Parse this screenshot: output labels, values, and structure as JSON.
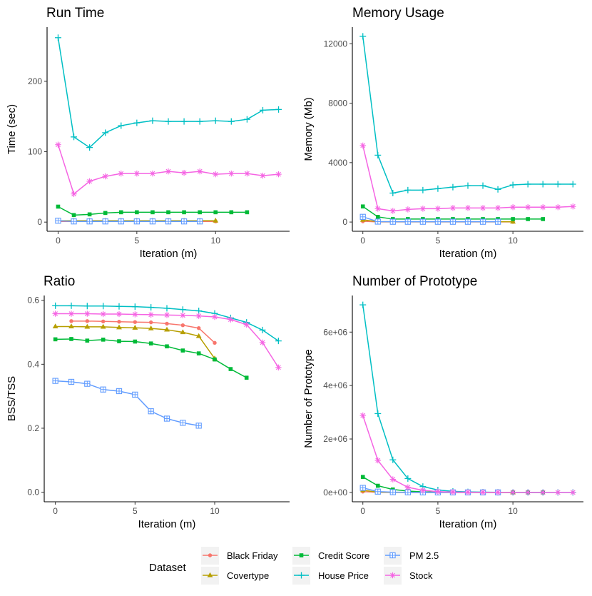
{
  "legend": {
    "title": "Dataset",
    "entries": [
      "Black Friday",
      "Covertype",
      "Credit Score",
      "House Price",
      "PM 2.5",
      "Stock"
    ]
  },
  "series_styles": {
    "Black Friday": {
      "color": "#F8766D",
      "marker": "circle"
    },
    "Covertype": {
      "color": "#B79F00",
      "marker": "triangle"
    },
    "Credit Score": {
      "color": "#00BA38",
      "marker": "square"
    },
    "House Price": {
      "color": "#00BFC4",
      "marker": "plus"
    },
    "PM 2.5": {
      "color": "#619CFF",
      "marker": "boxcross"
    },
    "Stock": {
      "color": "#F564E3",
      "marker": "asterisk"
    }
  },
  "chart_data": [
    {
      "type": "line",
      "title": "Run Time",
      "xlabel": "Iteration (m)",
      "ylabel": "Time (sec)",
      "xlim": [
        -0.7,
        14.7
      ],
      "ylim": [
        -13,
        277
      ],
      "xticks": [
        0,
        5,
        10
      ],
      "xtick_labels": [
        "0",
        "5",
        "10"
      ],
      "yticks": [
        0,
        100,
        200
      ],
      "ytick_labels": [
        "0",
        "100",
        "200"
      ],
      "series": [
        {
          "name": "Black Friday",
          "x": [
            0,
            1,
            2,
            3,
            4,
            5,
            6,
            7,
            8,
            9,
            10
          ],
          "y": [
            1,
            1,
            1,
            1,
            1,
            1,
            1,
            1,
            1,
            1,
            1
          ]
        },
        {
          "name": "Covertype",
          "x": [
            0,
            1,
            2,
            3,
            4,
            5,
            6,
            7,
            8,
            9,
            10
          ],
          "y": [
            2,
            2,
            2,
            2,
            2,
            2,
            2,
            2,
            2,
            2,
            2
          ]
        },
        {
          "name": "Credit Score",
          "x": [
            0,
            1,
            2,
            3,
            4,
            5,
            6,
            7,
            8,
            9,
            10,
            11,
            12
          ],
          "y": [
            22,
            10,
            11,
            13,
            14,
            14,
            14,
            14,
            14,
            14,
            14,
            14,
            14
          ]
        },
        {
          "name": "House Price",
          "x": [
            0,
            1,
            2,
            3,
            4,
            5,
            6,
            7,
            8,
            9,
            10,
            11,
            12,
            13,
            14
          ],
          "y": [
            262,
            121,
            106,
            127,
            137,
            141,
            144,
            143,
            143,
            143,
            144,
            143,
            146,
            159,
            160
          ]
        },
        {
          "name": "PM 2.5",
          "x": [
            0,
            1,
            2,
            3,
            4,
            5,
            6,
            7,
            8,
            9
          ],
          "y": [
            2,
            1,
            1,
            1,
            1,
            1,
            1,
            1,
            1,
            1
          ]
        },
        {
          "name": "Stock",
          "x": [
            0,
            1,
            2,
            3,
            4,
            5,
            6,
            7,
            8,
            9,
            10,
            11,
            12,
            13,
            14
          ],
          "y": [
            110,
            40,
            58,
            65,
            69,
            69,
            69,
            72,
            70,
            72,
            68,
            69,
            69,
            66,
            68
          ]
        }
      ]
    },
    {
      "type": "line",
      "title": "Memory Usage",
      "xlabel": "Iteration (m)",
      "ylabel": "Memory (Mb)",
      "xlim": [
        -0.7,
        14.7
      ],
      "ylim": [
        -620,
        13120
      ],
      "xticks": [
        0,
        5,
        10
      ],
      "xtick_labels": [
        "0",
        "5",
        "10"
      ],
      "yticks": [
        0,
        4000,
        8000,
        12000
      ],
      "ytick_labels": [
        "0",
        "4000",
        "8000",
        "12000"
      ],
      "series": [
        {
          "name": "Black Friday",
          "x": [
            0,
            1,
            2,
            3,
            4,
            5,
            6,
            7,
            8,
            9,
            10
          ],
          "y": [
            50,
            10,
            10,
            10,
            10,
            10,
            10,
            10,
            10,
            10,
            10
          ]
        },
        {
          "name": "Covertype",
          "x": [
            0,
            1,
            2,
            3,
            4,
            5,
            6,
            7,
            8,
            9,
            10
          ],
          "y": [
            150,
            30,
            20,
            20,
            20,
            20,
            20,
            20,
            20,
            20,
            20
          ]
        },
        {
          "name": "Credit Score",
          "x": [
            0,
            1,
            2,
            3,
            4,
            5,
            6,
            7,
            8,
            9,
            10,
            11,
            12
          ],
          "y": [
            1050,
            350,
            200,
            200,
            200,
            200,
            200,
            200,
            200,
            200,
            200,
            200,
            200
          ]
        },
        {
          "name": "House Price",
          "x": [
            0,
            1,
            2,
            3,
            4,
            5,
            6,
            7,
            8,
            9,
            10,
            11,
            12,
            13,
            14
          ],
          "y": [
            12500,
            4500,
            1950,
            2150,
            2150,
            2250,
            2350,
            2450,
            2450,
            2200,
            2500,
            2550,
            2550,
            2550,
            2550
          ]
        },
        {
          "name": "PM 2.5",
          "x": [
            0,
            1,
            2,
            3,
            4,
            5,
            6,
            7,
            8,
            9
          ],
          "y": [
            350,
            30,
            20,
            20,
            20,
            20,
            20,
            20,
            20,
            20
          ]
        },
        {
          "name": "Stock",
          "x": [
            0,
            1,
            2,
            3,
            4,
            5,
            6,
            7,
            8,
            9,
            10,
            11,
            12,
            13,
            14
          ],
          "y": [
            5150,
            900,
            750,
            850,
            900,
            900,
            950,
            950,
            950,
            950,
            1000,
            1000,
            1000,
            1000,
            1050
          ]
        }
      ]
    },
    {
      "type": "line",
      "title": "Ratio",
      "xlabel": "Iteration (m)",
      "ylabel": "BSS/TSS",
      "xlim": [
        -0.7,
        14.7
      ],
      "ylim": [
        -0.03,
        0.615
      ],
      "xticks": [
        0,
        5,
        10
      ],
      "xtick_labels": [
        "0",
        "5",
        "10"
      ],
      "yticks": [
        0.0,
        0.2,
        0.4,
        0.6
      ],
      "ytick_labels": [
        "0.0",
        "0.2",
        "0.4",
        "0.6"
      ],
      "series": [
        {
          "name": "Black Friday",
          "x": [
            1,
            2,
            3,
            4,
            5,
            6,
            7,
            8,
            9,
            10
          ],
          "y": [
            0.535,
            0.535,
            0.534,
            0.533,
            0.532,
            0.531,
            0.527,
            0.522,
            0.513,
            0.467
          ]
        },
        {
          "name": "Covertype",
          "x": [
            0,
            1,
            2,
            3,
            4,
            5,
            6,
            7,
            8,
            9,
            10
          ],
          "y": [
            0.518,
            0.518,
            0.517,
            0.517,
            0.515,
            0.514,
            0.512,
            0.508,
            0.5,
            0.488,
            0.418
          ]
        },
        {
          "name": "Credit Score",
          "x": [
            0,
            1,
            2,
            3,
            4,
            5,
            6,
            7,
            8,
            9,
            10,
            11,
            12
          ],
          "y": [
            0.478,
            0.479,
            0.474,
            0.477,
            0.472,
            0.471,
            0.465,
            0.456,
            0.443,
            0.434,
            0.415,
            0.385,
            0.358
          ]
        },
        {
          "name": "House Price",
          "x": [
            0,
            1,
            2,
            3,
            4,
            5,
            6,
            7,
            8,
            9,
            10,
            11,
            12,
            13,
            14
          ],
          "y": [
            0.583,
            0.583,
            0.582,
            0.582,
            0.581,
            0.58,
            0.578,
            0.575,
            0.571,
            0.567,
            0.559,
            0.545,
            0.531,
            0.507,
            0.473
          ]
        },
        {
          "name": "PM 2.5",
          "x": [
            0,
            1,
            2,
            3,
            4,
            5,
            6,
            7,
            8,
            9
          ],
          "y": [
            0.348,
            0.345,
            0.339,
            0.321,
            0.316,
            0.305,
            0.253,
            0.23,
            0.217,
            0.208
          ]
        },
        {
          "name": "Stock",
          "x": [
            0,
            1,
            2,
            3,
            4,
            5,
            6,
            7,
            8,
            9,
            10,
            11,
            12,
            13,
            14
          ],
          "y": [
            0.558,
            0.558,
            0.558,
            0.557,
            0.557,
            0.556,
            0.555,
            0.554,
            0.553,
            0.551,
            0.548,
            0.54,
            0.524,
            0.468,
            0.39
          ]
        }
      ]
    },
    {
      "type": "line",
      "title": "Number of Prototype",
      "xlabel": "Iteration (m)",
      "ylabel": "Number of Prototype",
      "xlim": [
        -0.7,
        14.7
      ],
      "ylim": [
        -350000,
        7370000
      ],
      "xticks": [
        0,
        5,
        10
      ],
      "xtick_labels": [
        "0",
        "5",
        "10"
      ],
      "yticks": [
        0,
        2000000,
        4000000,
        6000000
      ],
      "ytick_labels": [
        "0e+00",
        "2e+06",
        "4e+06",
        "6e+06"
      ],
      "series": [
        {
          "name": "Black Friday",
          "x": [
            0,
            1,
            2,
            3,
            4,
            5,
            6,
            7,
            8,
            9,
            10
          ],
          "y": [
            30000,
            5000,
            2000,
            1000,
            1000,
            1000,
            1000,
            1000,
            1000,
            1000,
            1000
          ]
        },
        {
          "name": "Covertype",
          "x": [
            0,
            1,
            2,
            3,
            4,
            5,
            6,
            7,
            8,
            9,
            10
          ],
          "y": [
            80000,
            10000,
            3000,
            1000,
            1000,
            1000,
            1000,
            1000,
            1000,
            1000,
            1000
          ]
        },
        {
          "name": "Credit Score",
          "x": [
            0,
            1,
            2,
            3,
            4,
            5,
            6,
            7,
            8,
            9,
            10,
            11,
            12
          ],
          "y": [
            580000,
            250000,
            110000,
            50000,
            20000,
            10000,
            5000,
            3000,
            2000,
            1000,
            1000,
            1000,
            1000
          ]
        },
        {
          "name": "House Price",
          "x": [
            0,
            1,
            2,
            3,
            4,
            5,
            6,
            7,
            8,
            9,
            10,
            11,
            12,
            13,
            14
          ],
          "y": [
            7020000,
            2950000,
            1220000,
            520000,
            220000,
            90000,
            40000,
            20000,
            10000,
            5000,
            3000,
            2000,
            1000,
            1000,
            1000
          ]
        },
        {
          "name": "PM 2.5",
          "x": [
            0,
            1,
            2,
            3,
            4,
            5,
            6,
            7,
            8,
            9
          ],
          "y": [
            170000,
            30000,
            10000,
            5000,
            2000,
            1000,
            1000,
            1000,
            1000,
            1000
          ]
        },
        {
          "name": "Stock",
          "x": [
            0,
            1,
            2,
            3,
            4,
            5,
            6,
            7,
            8,
            9,
            10,
            11,
            12,
            13,
            14
          ],
          "y": [
            2880000,
            1200000,
            490000,
            190000,
            80000,
            30000,
            15000,
            8000,
            5000,
            3000,
            2000,
            1000,
            1000,
            1000,
            1000
          ]
        }
      ]
    }
  ]
}
